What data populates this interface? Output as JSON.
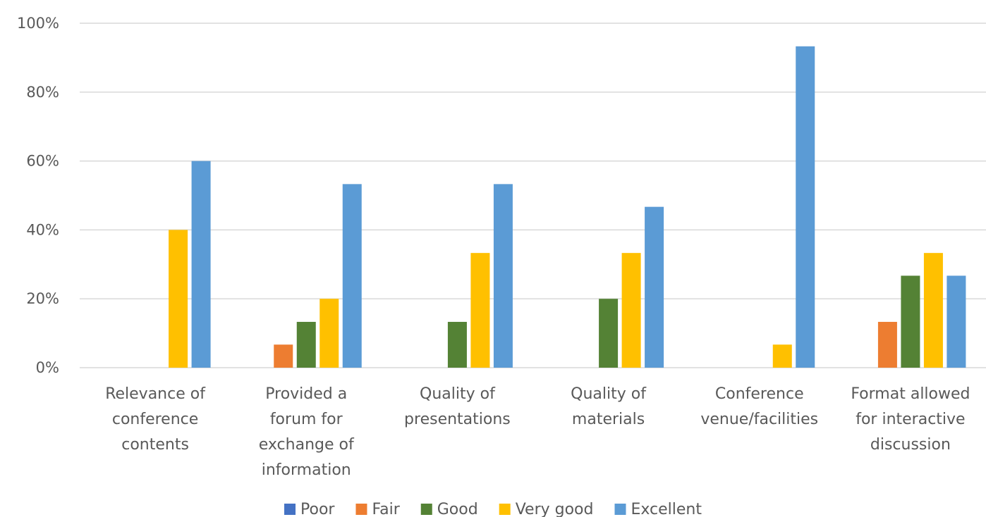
{
  "chart_data": {
    "type": "bar",
    "title": "",
    "xlabel": "",
    "ylabel": "",
    "ylim": [
      0,
      100
    ],
    "y_ticks": [
      "0%",
      "20%",
      "40%",
      "60%",
      "80%",
      "100%"
    ],
    "y_tick_values": [
      0,
      20,
      40,
      60,
      80,
      100
    ],
    "grid": true,
    "legend_position": "bottom",
    "categories": [
      [
        "Relevance of",
        "conference",
        "contents"
      ],
      [
        "Provided a",
        "forum for",
        "exchange of",
        "information"
      ],
      [
        "Quality of",
        "presentations"
      ],
      [
        "Quality of",
        "materials"
      ],
      [
        "Conference",
        "venue/facilities"
      ],
      [
        "Format allowed",
        "for interactive",
        "discussion"
      ]
    ],
    "series": [
      {
        "name": "Poor",
        "color": "#4472C4",
        "values": [
          0,
          0,
          0,
          0,
          0,
          0
        ]
      },
      {
        "name": "Fair",
        "color": "#ED7D31",
        "values": [
          0,
          6.7,
          0,
          0,
          0,
          13.3
        ]
      },
      {
        "name": "Good",
        "color": "#548235",
        "values": [
          0,
          13.3,
          13.3,
          20,
          0,
          26.7
        ]
      },
      {
        "name": "Very good",
        "color": "#FFC000",
        "values": [
          40,
          20,
          33.3,
          33.3,
          6.7,
          33.3
        ]
      },
      {
        "name": "Excellent",
        "color": "#5B9BD5",
        "values": [
          60,
          53.3,
          53.3,
          46.7,
          93.3,
          26.7
        ]
      }
    ]
  }
}
